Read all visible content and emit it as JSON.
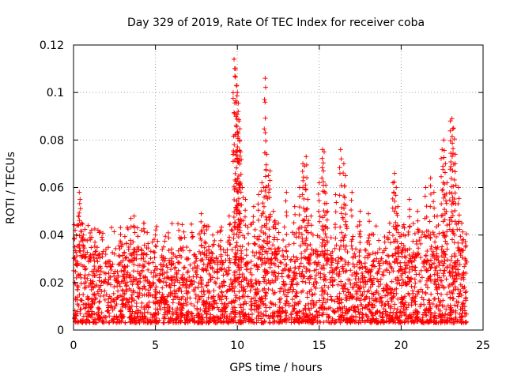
{
  "chart_data": {
    "type": "scatter",
    "title": "Day 329 of 2019, Rate Of TEC Index for receiver coba",
    "xlabel": "GPS time / hours",
    "ylabel": "ROTI / TECUs",
    "xlim": [
      0,
      25
    ],
    "ylim": [
      0,
      0.12
    ],
    "x_ticks": [
      "0",
      "5",
      "10",
      "15",
      "20",
      "25"
    ],
    "y_ticks": [
      "0",
      "0.02",
      "0.04",
      "0.06",
      "0.08",
      "0.1",
      "0.12"
    ],
    "grid": true,
    "marker": "+",
    "color": "#ff0000",
    "series": [
      {
        "name": "ROTI",
        "x": [
          0.1,
          0.2,
          0.3,
          0.35,
          0.4,
          0.5,
          0.6,
          0.7,
          1.0,
          1.5,
          2.5,
          3.0,
          3.5,
          3.7,
          3.9,
          4.3,
          4.5,
          5.0,
          5.5,
          6.5,
          7.0,
          7.8,
          8.0,
          8.5,
          9.0,
          9.5,
          9.8,
          9.9,
          9.95,
          10.0,
          10.05,
          10.1,
          10.15,
          10.2,
          10.3,
          10.5,
          11.0,
          11.3,
          11.5,
          11.6,
          11.7,
          11.8,
          11.9,
          12.0,
          12.2,
          12.3,
          12.5,
          13.0,
          13.5,
          13.8,
          14.0,
          14.1,
          14.2,
          14.3,
          14.5,
          15.0,
          15.2,
          15.3,
          15.4,
          15.5,
          16.0,
          16.3,
          16.5,
          16.6,
          17.0,
          17.5,
          18.0,
          18.5,
          19.0,
          19.3,
          19.5,
          19.6,
          19.7,
          19.8,
          20.0,
          20.2,
          20.5,
          21.0,
          21.5,
          21.8,
          22.0,
          22.2,
          22.5,
          22.6,
          22.7,
          22.8,
          23.0,
          23.1,
          23.2,
          23.3,
          23.5,
          23.7,
          23.9
        ],
        "y": [
          0.042,
          0.044,
          0.048,
          0.058,
          0.055,
          0.045,
          0.04,
          0.038,
          0.03,
          0.025,
          0.032,
          0.036,
          0.047,
          0.048,
          0.043,
          0.045,
          0.041,
          0.04,
          0.035,
          0.039,
          0.03,
          0.049,
          0.044,
          0.04,
          0.042,
          0.048,
          0.114,
          0.11,
          0.103,
          0.1,
          0.092,
          0.088,
          0.08,
          0.075,
          0.06,
          0.055,
          0.052,
          0.057,
          0.062,
          0.06,
          0.106,
          0.074,
          0.065,
          0.067,
          0.05,
          0.046,
          0.045,
          0.058,
          0.052,
          0.06,
          0.07,
          0.069,
          0.073,
          0.055,
          0.048,
          0.062,
          0.076,
          0.075,
          0.061,
          0.05,
          0.057,
          0.076,
          0.07,
          0.065,
          0.058,
          0.05,
          0.049,
          0.03,
          0.037,
          0.045,
          0.062,
          0.066,
          0.06,
          0.052,
          0.04,
          0.043,
          0.055,
          0.05,
          0.06,
          0.064,
          0.058,
          0.048,
          0.076,
          0.08,
          0.07,
          0.062,
          0.088,
          0.089,
          0.085,
          0.074,
          0.06,
          0.045,
          0.03
        ]
      }
    ],
    "background_band": {
      "description": "dense scatter of many values mostly between 0.005 and 0.03 across the whole day",
      "y_min": 0.003,
      "y_max": 0.03
    }
  }
}
